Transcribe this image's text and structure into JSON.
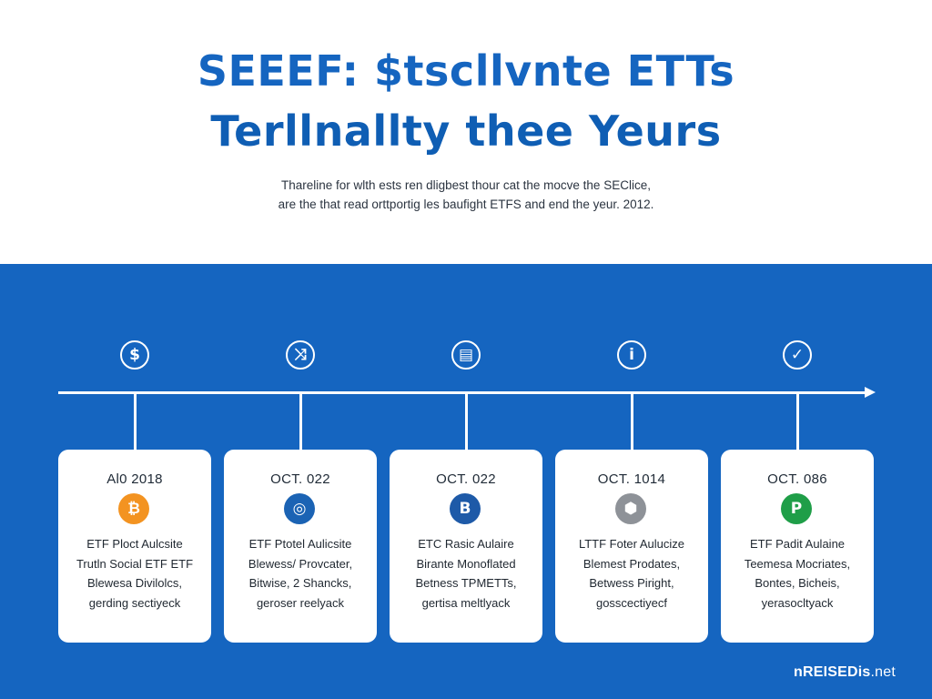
{
  "header": {
    "title_line1": "SEEEF: $tscllvnte ETTs",
    "title_line2": "Terllnallty thee Yeurs",
    "subtitle_line1": "Thareline for wlth ests ren dligbest thour cat the mocve the SEClice,",
    "subtitle_line2": "are the that read orttportig les baufight ETFS and end the yeur. 2012."
  },
  "colors": {
    "brand_blue": "#1565c0",
    "card_bg": "#ffffff"
  },
  "timeline": {
    "milestones": [
      {
        "top_icon": "dollar-icon",
        "top_glyph": "$",
        "date": "Al0 2018",
        "coin_icon": "bitcoin-icon",
        "coin_glyph": "₿",
        "coin_color": "#f39321",
        "lines": [
          "ETF Ploct Aulcsite",
          "Trutln Social ETF ETF",
          "Blewesa Divilolcs,",
          "gerding sectiyeck"
        ]
      },
      {
        "top_icon": "exchange-icon",
        "top_glyph": "⤨",
        "date": "OCT. 022",
        "coin_icon": "globe-icon",
        "coin_glyph": "◎",
        "coin_color": "#1b63b4",
        "lines": [
          "ETF Ptotel Aulicsite",
          "Blewess/ Provcater,",
          "Bitwise, 2 Shancks,",
          "geroser reelyack"
        ]
      },
      {
        "top_icon": "document-icon",
        "top_glyph": "▤",
        "date": "OCT. 022",
        "coin_icon": "bitcoin-icon",
        "coin_glyph": "B",
        "coin_color": "#1e5aa8",
        "lines": [
          "ETC Rasic Aulaire",
          "Birante Monoflated",
          "Betness TPMETTs,",
          "gertisa meltlyack"
        ]
      },
      {
        "top_icon": "info-icon",
        "top_glyph": "i",
        "date": "OCT. 1014",
        "coin_icon": "cube-icon",
        "coin_glyph": "⬢",
        "coin_color": "#8e9298",
        "lines": [
          "LTTF Foter Aulucize",
          "Blemest Prodates,",
          "Betwess Piright,",
          "gosscectiyecf"
        ]
      },
      {
        "top_icon": "check-icon",
        "top_glyph": "✓",
        "date": "OCT. 086",
        "coin_icon": "p-coin-icon",
        "coin_glyph": "P",
        "coin_color": "#1f9e48",
        "lines": [
          "ETF Padit Aulaine",
          "Teemesa Mocriates,",
          "Bontes, Bicheis,",
          "yerasocltyack"
        ]
      }
    ]
  },
  "footer": {
    "brand": "nREISEDis",
    "tld": ".net"
  }
}
